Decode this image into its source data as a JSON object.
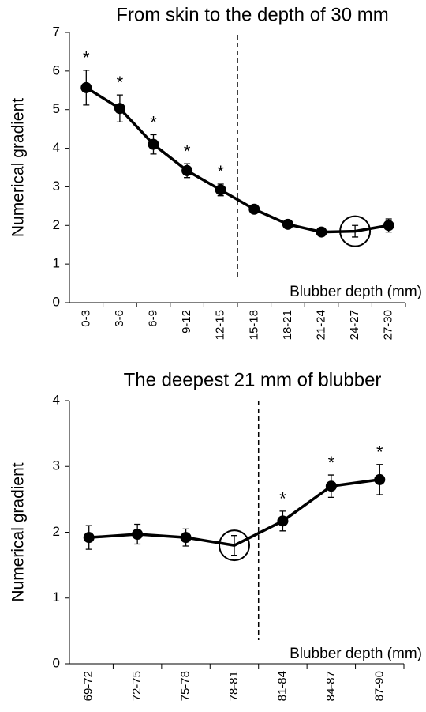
{
  "chart_data": [
    {
      "type": "line",
      "title": "From skin to the depth of 30 mm",
      "y_label": "Numerical gradient",
      "x_label": "Blubber depth (mm)",
      "categories": [
        "0-3",
        "3-6",
        "6-9",
        "9-12",
        "12-15",
        "15-18",
        "18-21",
        "21-24",
        "24-27",
        "27-30"
      ],
      "series": [
        {
          "name": "Numerical gradient",
          "color": "#000000",
          "values": [
            5.57,
            5.03,
            4.1,
            3.42,
            2.92,
            2.42,
            2.03,
            1.83,
            1.85,
            2.0
          ],
          "errors": [
            0.45,
            0.35,
            0.25,
            0.18,
            0.15,
            0.1,
            0.08,
            0.07,
            0.15,
            0.17
          ],
          "significance": [
            "*",
            "*",
            "*",
            "*",
            "*",
            null,
            null,
            null,
            null,
            null
          ]
        }
      ],
      "highlight_index": 8,
      "divider_after": 4,
      "ylim": [
        0,
        7
      ],
      "yticks": [
        0,
        1,
        2,
        3,
        4,
        5,
        6,
        7
      ]
    },
    {
      "type": "line",
      "title": "The deepest 21 mm of blubber",
      "y_label": "Numerical gradient",
      "x_label": "Blubber depth (mm)",
      "categories": [
        "69-72",
        "72-75",
        "75-78",
        "78-81",
        "81-84",
        "84-87",
        "87-90"
      ],
      "series": [
        {
          "name": "Numerical gradient",
          "color": "#000000",
          "values": [
            1.92,
            1.97,
            1.92,
            1.8,
            2.17,
            2.7,
            2.8
          ],
          "errors": [
            0.18,
            0.15,
            0.13,
            0.15,
            0.15,
            0.17,
            0.23
          ],
          "significance": [
            null,
            null,
            null,
            null,
            "*",
            "*",
            "*"
          ]
        }
      ],
      "highlight_index": 3,
      "divider_after": 3,
      "ylim": [
        0,
        4
      ],
      "yticks": [
        0,
        1,
        2,
        3,
        4
      ]
    }
  ]
}
